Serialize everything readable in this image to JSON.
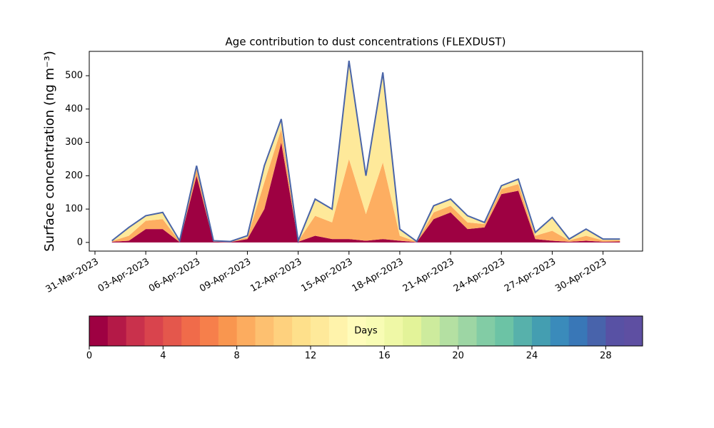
{
  "chart_data": {
    "type": "stacked-area",
    "title": "Age contribution to dust concentrations (FLEXDUST)",
    "ylabel": "Surface concentration (ng m⁻³)",
    "x": [
      "2023-04-01",
      "2023-04-02",
      "2023-04-03",
      "2023-04-04",
      "2023-04-05",
      "2023-04-06",
      "2023-04-07",
      "2023-04-08",
      "2023-04-09",
      "2023-04-10",
      "2023-04-11",
      "2023-04-12",
      "2023-04-13",
      "2023-04-14",
      "2023-04-15",
      "2023-04-16",
      "2023-04-17",
      "2023-04-18",
      "2023-04-19",
      "2023-04-20",
      "2023-04-21",
      "2023-04-22",
      "2023-04-23",
      "2023-04-24",
      "2023-04-25",
      "2023-04-26",
      "2023-04-27",
      "2023-04-28",
      "2023-04-29",
      "2023-04-30",
      "2023-05-01"
    ],
    "series": [
      {
        "color": "#9e0142",
        "values": [
          2,
          5,
          40,
          40,
          1,
          200,
          2,
          1,
          10,
          100,
          300,
          2,
          20,
          10,
          10,
          5,
          10,
          5,
          1,
          70,
          90,
          40,
          45,
          145,
          155,
          10,
          5,
          2,
          5,
          2,
          3
        ]
      },
      {
        "color": "#fdae61",
        "values": [
          2,
          15,
          25,
          30,
          2,
          20,
          2,
          1,
          5,
          80,
          40,
          2,
          60,
          50,
          240,
          80,
          230,
          15,
          1,
          20,
          20,
          20,
          10,
          15,
          20,
          10,
          30,
          4,
          15,
          4,
          3
        ]
      },
      {
        "color": "#fee99a",
        "values": [
          1,
          25,
          15,
          20,
          2,
          10,
          1,
          1,
          5,
          50,
          30,
          1,
          50,
          40,
          295,
          115,
          270,
          20,
          1,
          20,
          20,
          20,
          5,
          10,
          15,
          10,
          40,
          4,
          20,
          4,
          4
        ]
      }
    ],
    "line_color": "#4a65a8",
    "xlim": [
      "2023-03-31",
      "2023-05-02"
    ],
    "xticks": [
      {
        "value": "2023-03-31",
        "label": "31-Mar-2023"
      },
      {
        "value": "2023-04-03",
        "label": "03-Apr-2023"
      },
      {
        "value": "2023-04-06",
        "label": "06-Apr-2023"
      },
      {
        "value": "2023-04-09",
        "label": "09-Apr-2023"
      },
      {
        "value": "2023-04-12",
        "label": "12-Apr-2023"
      },
      {
        "value": "2023-04-15",
        "label": "15-Apr-2023"
      },
      {
        "value": "2023-04-18",
        "label": "18-Apr-2023"
      },
      {
        "value": "2023-04-21",
        "label": "21-Apr-2023"
      },
      {
        "value": "2023-04-24",
        "label": "24-Apr-2023"
      },
      {
        "value": "2023-04-27",
        "label": "27-Apr-2023"
      },
      {
        "value": "2023-04-30",
        "label": "30-Apr-2023"
      }
    ],
    "ylim": [
      -26,
      573
    ],
    "yticks": [
      0,
      100,
      200,
      300,
      400,
      500
    ],
    "colorbar": {
      "label": "Days",
      "clim": [
        0,
        30
      ],
      "ticks": [
        0,
        4,
        8,
        12,
        16,
        20,
        24,
        28
      ],
      "colors": [
        "#9e0142",
        "#b41947",
        "#c9314c",
        "#d9444d",
        "#e4574c",
        "#f06b4a",
        "#f67f4b",
        "#f9964f",
        "#fcac5f",
        "#fdc070",
        "#fed17e",
        "#fee08b",
        "#fee99a",
        "#fff3ab",
        "#fffcbb",
        "#f8fcb4",
        "#eff8a6",
        "#e3f399",
        "#cdeb9d",
        "#b4e0a2",
        "#9dd6a4",
        "#82cca5",
        "#6cc3a5",
        "#57b1ab",
        "#449eb1",
        "#3a8bbb",
        "#3977b7",
        "#4863ab",
        "#5851a4",
        "#5e4fa2"
      ]
    }
  }
}
